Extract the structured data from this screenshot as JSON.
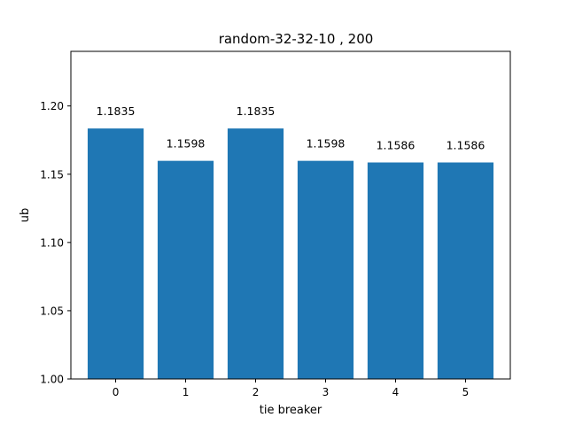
{
  "chart_data": {
    "type": "bar",
    "title": "random-32-32-10 , 200",
    "xlabel": "tie breaker",
    "ylabel": "ub",
    "categories": [
      "0",
      "1",
      "2",
      "3",
      "4",
      "5"
    ],
    "values": [
      1.1835,
      1.1598,
      1.1835,
      1.1598,
      1.1586,
      1.1586
    ],
    "data_labels": [
      "1.1835",
      "1.1598",
      "1.1835",
      "1.1598",
      "1.1586",
      "1.1586"
    ],
    "ylim": [
      1.0,
      1.24
    ],
    "yticks": [
      "1.00",
      "1.05",
      "1.10",
      "1.15",
      "1.20"
    ],
    "ytick_values": [
      1.0,
      1.05,
      1.1,
      1.15,
      1.2
    ],
    "bar_color": "#1f77b4",
    "grid": false,
    "legend": "none"
  }
}
